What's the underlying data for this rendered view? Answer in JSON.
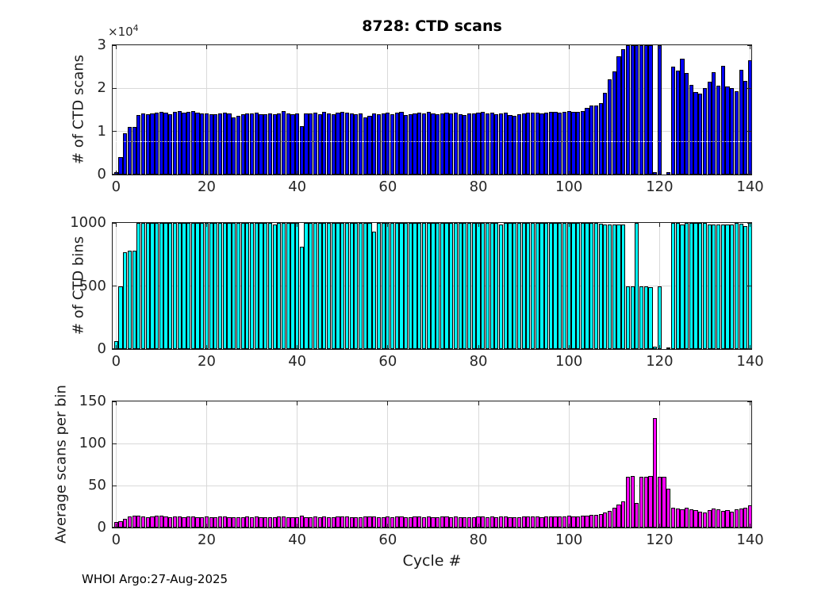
{
  "figure": {
    "footer": "WHOI Argo:27-Aug-2025",
    "xlabel": "Cycle #",
    "background_color": "#ffffff",
    "grid_color": "#d9d9d9",
    "tick_text_color": "#262626",
    "xlim": [
      -0.75,
      140.25
    ],
    "x_tick_values": [
      0,
      20,
      40,
      60,
      80,
      100,
      120,
      140
    ],
    "x_tick_labels": [
      "0",
      "20",
      "40",
      "60",
      "80",
      "100",
      "120",
      "140"
    ]
  },
  "chart_data": [
    {
      "id": "scans",
      "type": "bar",
      "title": "8728: CTD scans",
      "ylabel": "# of CTD scans",
      "y_exponent_base": "×10",
      "y_exponent_power": "4",
      "bar_color": "#0000ff",
      "grid": true,
      "legend": "none",
      "ylim": [
        0,
        30000
      ],
      "y_tick_values": [
        0,
        10000,
        20000,
        30000
      ],
      "y_tick_labels": [
        "0",
        "1",
        "2",
        "3"
      ],
      "white_dotted_line_value": 7800,
      "x_is_cycle_index": true,
      "values": [
        500,
        4000,
        9500,
        11000,
        11000,
        13800,
        14200,
        14000,
        14100,
        14300,
        14500,
        14400,
        14000,
        14500,
        14700,
        14400,
        14600,
        14700,
        14400,
        14200,
        14100,
        13900,
        14000,
        14200,
        14400,
        14100,
        13300,
        13600,
        14000,
        14200,
        14100,
        14300,
        14000,
        13900,
        14100,
        14000,
        14200,
        14700,
        14100,
        13900,
        14200,
        11300,
        14200,
        14100,
        14300,
        14000,
        14600,
        14200,
        14000,
        14400,
        14600,
        14400,
        14200,
        14000,
        14100,
        13200,
        13600,
        14100,
        14000,
        14200,
        14400,
        14000,
        14300,
        14500,
        13800,
        14000,
        14200,
        14400,
        14200,
        14600,
        14200,
        14000,
        14200,
        14300,
        14100,
        14400,
        14000,
        13800,
        14200,
        14100,
        14300,
        14500,
        14200,
        14400,
        14000,
        14200,
        14400,
        13800,
        13600,
        14000,
        14200,
        14400,
        14300,
        14400,
        14200,
        14400,
        14600,
        14500,
        14400,
        14600,
        14700,
        14500,
        14600,
        14800,
        15500,
        16000,
        16000,
        16500,
        19000,
        22000,
        24000,
        27500,
        29000,
        30000,
        30000,
        30000,
        30000,
        30000,
        30000,
        600,
        30000,
        null,
        500,
        25000,
        24200,
        26800,
        23600,
        20800,
        19100,
        18800,
        20000,
        21600,
        23800,
        20600,
        25200,
        20500,
        20000,
        19400,
        24300,
        21700,
        26500
      ]
    },
    {
      "id": "bins",
      "type": "bar",
      "title": "",
      "ylabel": "# of CTD bins",
      "bar_color": "#00ffff",
      "grid": true,
      "legend": "none",
      "ylim": [
        0,
        1000
      ],
      "y_tick_values": [
        0,
        500,
        1000
      ],
      "y_tick_labels": [
        "0",
        "500",
        "1000"
      ],
      "x_is_cycle_index": true,
      "values": [
        60,
        500,
        770,
        780,
        780,
        1000,
        1000,
        1000,
        1000,
        1000,
        1000,
        1000,
        1000,
        1000,
        1000,
        1000,
        1000,
        1000,
        1000,
        1000,
        1000,
        1000,
        1000,
        1000,
        1000,
        1000,
        1000,
        1000,
        1000,
        1000,
        1000,
        1000,
        1000,
        1000,
        1000,
        990,
        1000,
        1000,
        1000,
        1000,
        1000,
        810,
        1000,
        1000,
        1000,
        1000,
        1000,
        1000,
        1000,
        1000,
        1000,
        1000,
        1000,
        1000,
        1000,
        1000,
        1000,
        930,
        1000,
        1000,
        1000,
        1000,
        1000,
        1000,
        1000,
        1000,
        1000,
        1000,
        1000,
        1000,
        1000,
        1000,
        1000,
        1000,
        1000,
        1000,
        1000,
        1000,
        1000,
        1000,
        1000,
        1000,
        1000,
        1000,
        1000,
        985,
        1000,
        1000,
        1000,
        1000,
        1000,
        1000,
        1000,
        1000,
        1000,
        1000,
        1000,
        1000,
        1000,
        1000,
        1000,
        1000,
        1000,
        1000,
        1000,
        1000,
        1000,
        995,
        985,
        985,
        985,
        985,
        985,
        500,
        500,
        1000,
        500,
        500,
        490,
        20,
        500,
        null,
        15,
        1000,
        1000,
        990,
        1000,
        1000,
        1000,
        1000,
        1000,
        985,
        990,
        985,
        990,
        985,
        990,
        1000,
        995,
        975,
        1000
      ]
    },
    {
      "id": "avg",
      "type": "bar",
      "title": "",
      "ylabel": "Average scans per bin",
      "bar_color": "#ff00ff",
      "grid": true,
      "legend": "none",
      "ylim": [
        0,
        150
      ],
      "y_tick_values": [
        0,
        50,
        100,
        150
      ],
      "y_tick_labels": [
        "0",
        "50",
        "100",
        "150"
      ],
      "x_is_cycle_index": true,
      "values": [
        7,
        8,
        10,
        13,
        14,
        14,
        13,
        12,
        13,
        14,
        14,
        13,
        12,
        13,
        13,
        12,
        13,
        13,
        12,
        12,
        13,
        12,
        12,
        13,
        13,
        12,
        12,
        12,
        12,
        13,
        12,
        13,
        12,
        12,
        12,
        12,
        13,
        13,
        12,
        12,
        12,
        14,
        12,
        12,
        13,
        12,
        13,
        12,
        12,
        13,
        13,
        13,
        12,
        12,
        12,
        13,
        13,
        13,
        12,
        12,
        13,
        12,
        13,
        13,
        12,
        12,
        13,
        13,
        12,
        13,
        12,
        12,
        13,
        13,
        12,
        13,
        12,
        12,
        12,
        12,
        13,
        13,
        12,
        13,
        12,
        13,
        13,
        12,
        12,
        12,
        13,
        13,
        13,
        13,
        12,
        13,
        13,
        13,
        13,
        13,
        14,
        13,
        13,
        14,
        14,
        15,
        15,
        16,
        18,
        20,
        24,
        27,
        31,
        60,
        61,
        29,
        60,
        60,
        61,
        130,
        60,
        60,
        46,
        24,
        23,
        22,
        24,
        22,
        21,
        19,
        18,
        21,
        23,
        22,
        20,
        21,
        19,
        22,
        23,
        24,
        26
      ]
    }
  ]
}
